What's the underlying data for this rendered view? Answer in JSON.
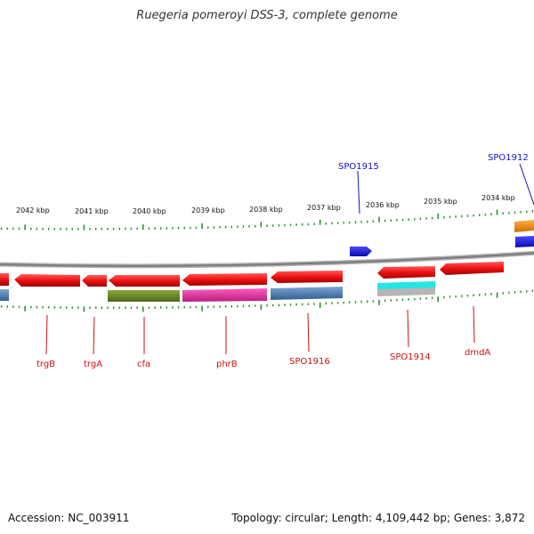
{
  "title": "Ruegeria pomeroyi DSS-3, complete genome",
  "footer": {
    "accession": "Accession: NC_003911",
    "summary": "Topology: circular; Length: 4,109,442 bp; Genes: 3,872"
  },
  "scale_labels": [
    "2042 kbp",
    "2041 kbp",
    "2040 kbp",
    "2039 kbp",
    "2038 kbp",
    "2037 kbp",
    "2036 kbp",
    "2035 kbp",
    "2034 kbp"
  ],
  "gene_labels_top": [
    "SPO1915",
    "SPO1912"
  ],
  "gene_labels_bottom": [
    "trgB",
    "trgA",
    "cfa",
    "phrB",
    "SPO1916",
    "SPO1914",
    "dmdA"
  ],
  "colors": {
    "cds": "#ee1111",
    "label_red": "#cc1111",
    "label_blue": "#1111cc",
    "tick": "#2e8b2e",
    "backbone": "#888888",
    "feature_blue": "#4a7fb5",
    "feature_olive": "#6b8e23",
    "feature_magenta": "#e0309a",
    "feature_cyan": "#22e6e6",
    "feature_grey": "#b5b5b5",
    "feature_orange": "#ff8c00",
    "feature_darkblue": "#1a1aee"
  }
}
